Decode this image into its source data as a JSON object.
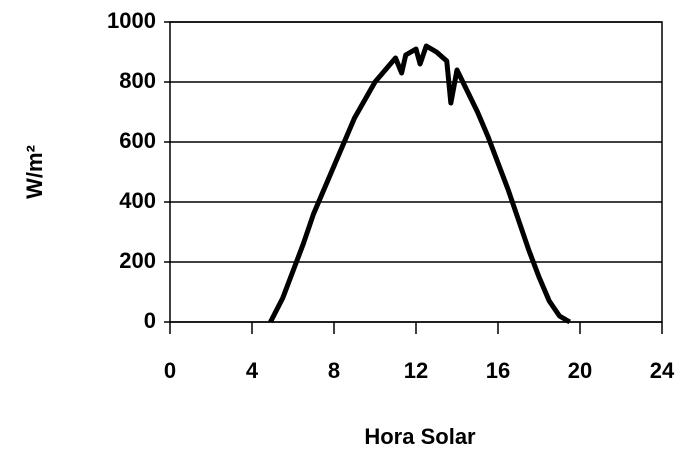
{
  "chart_data": {
    "type": "line",
    "xlabel": "Hora Solar",
    "ylabel": "W/m²",
    "series": [
      {
        "color": "#000000",
        "x": [
          4.9,
          5.5,
          6,
          6.5,
          7,
          7.5,
          8,
          8.5,
          9,
          9.5,
          10,
          10.5,
          11,
          11.3,
          11.5,
          12,
          12.2,
          12.5,
          13,
          13.5,
          13.7,
          14,
          14.5,
          15,
          15.5,
          16,
          16.5,
          17,
          17.5,
          18,
          18.5,
          19,
          19.5
        ],
        "values": [
          0,
          80,
          170,
          260,
          360,
          440,
          520,
          600,
          680,
          740,
          800,
          840,
          880,
          830,
          890,
          910,
          860,
          920,
          900,
          870,
          730,
          840,
          770,
          700,
          620,
          530,
          440,
          340,
          240,
          150,
          70,
          20,
          0
        ]
      }
    ],
    "xlim": [
      0,
      24
    ],
    "xticks": [
      0,
      4,
      8,
      12,
      16,
      20,
      24
    ],
    "ylim": [
      0,
      1000
    ],
    "yticks": [
      0,
      200,
      400,
      600,
      800,
      1000
    ],
    "grid": true
  }
}
